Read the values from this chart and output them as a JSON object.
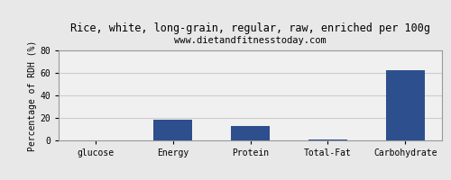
{
  "title": "Rice, white, long-grain, regular, raw, enriched per 100g",
  "subtitle": "www.dietandfitnesstoday.com",
  "categories": [
    "glucose",
    "Energy",
    "Protein",
    "Total-Fat",
    "Carbohydrate"
  ],
  "values": [
    0,
    18.5,
    13,
    1,
    62.5
  ],
  "bar_color": "#2d4f8e",
  "ylabel": "Percentage of RDH (%)",
  "ylim": [
    0,
    80
  ],
  "yticks": [
    0,
    20,
    40,
    60,
    80
  ],
  "background_color": "#e8e8e8",
  "plot_bg_color": "#f0f0f0",
  "title_fontsize": 8.5,
  "subtitle_fontsize": 7.5,
  "ylabel_fontsize": 7,
  "tick_fontsize": 7,
  "grid_color": "#cccccc",
  "spine_color": "#999999"
}
